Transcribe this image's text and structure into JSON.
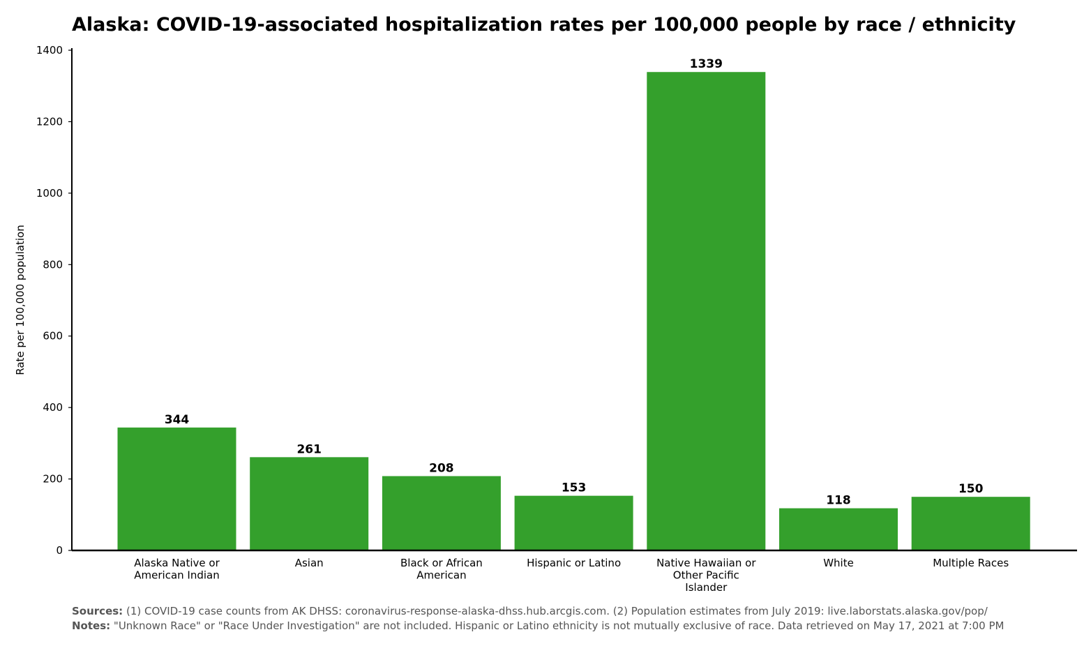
{
  "chart_data": {
    "type": "bar",
    "title": "Alaska: COVID-19-associated hospitalization rates per 100,000 people by race / ethnicity",
    "xlabel": "",
    "ylabel": "Rate per 100,000 population",
    "categories": [
      [
        "Alaska Native or",
        "American Indian"
      ],
      [
        "Asian"
      ],
      [
        "Black or African",
        "American"
      ],
      [
        "Hispanic or Latino"
      ],
      [
        "Native Hawaiian or",
        "Other Pacific",
        "Islander"
      ],
      [
        "White"
      ],
      [
        "Multiple Races"
      ]
    ],
    "values": [
      344,
      261,
      208,
      153,
      1339,
      118,
      150
    ],
    "ylim": [
      0,
      1400
    ],
    "yticks": [
      0,
      200,
      400,
      600,
      800,
      1000,
      1200,
      1400
    ],
    "bar_color": "#34a02c",
    "grid": false
  },
  "footer": {
    "sources_label": "Sources:",
    "sources_text": "(1) COVID-19 case counts from AK DHSS: coronavirus-response-alaska-dhss.hub.arcgis.com. (2) Population estimates from July 2019: live.laborstats.alaska.gov/pop/",
    "notes_label": "Notes:",
    "notes_text": "\"Unknown Race\" or \"Race Under Investigation\" are not included. Hispanic or Latino ethnicity is not mutually exclusive of race. Data retrieved on May 17, 2021 at 7:00 PM"
  }
}
